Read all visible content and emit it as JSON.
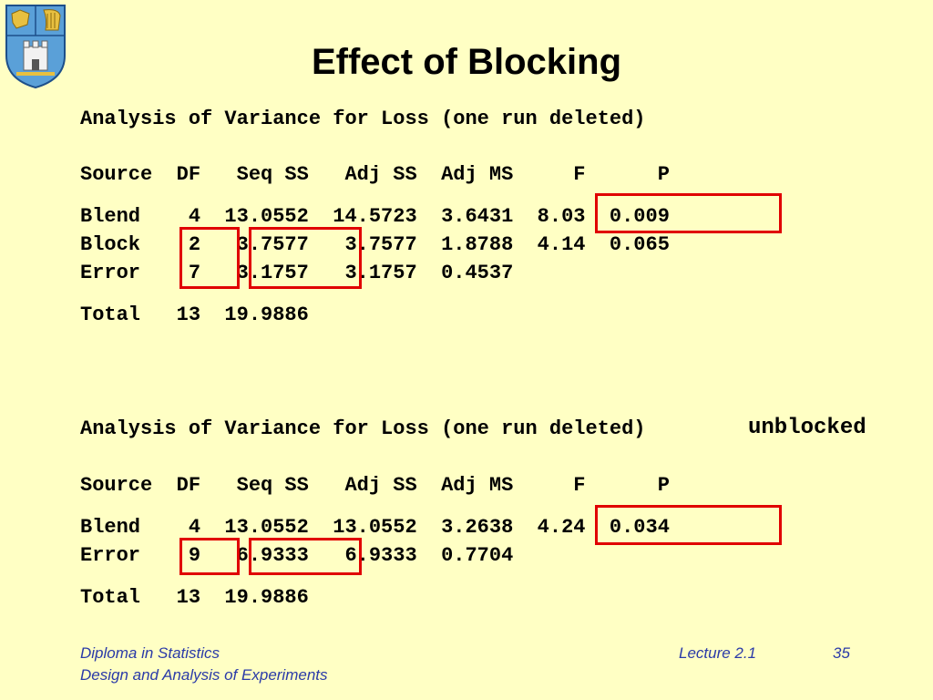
{
  "slide": {
    "title": "Effect of Blocking",
    "logo": "tcd-crest-icon"
  },
  "table1": {
    "heading": "Analysis of Variance for Loss (one run deleted)",
    "header": "Source  DF   Seq SS   Adj SS  Adj MS     F      P",
    "rows": [
      "Blend    4  13.0552  14.5723  3.6431  8.03  0.009",
      "Block    2   3.7577   3.7577  1.8788  4.14  0.065",
      "Error    7   3.1757   3.1757  0.4537"
    ],
    "total": "Total   13  19.9886"
  },
  "table2": {
    "heading": "Analysis of Variance for Loss (one run deleted)",
    "note": "unblocked",
    "header": "Source  DF   Seq SS   Adj SS  Adj MS     F      P",
    "rows": [
      "Blend    4  13.0552  13.0552  3.2638  4.24  0.034",
      "Error    9   6.9333   6.9333  0.7704"
    ],
    "total": "Total   13  19.9886"
  },
  "footer": {
    "course": "Diploma in Statistics",
    "module": "Design and Analysis of Experiments",
    "lecture": "Lecture 2.1",
    "page": "35"
  },
  "colors": {
    "background": "#ffffc4",
    "highlight": "#e00000",
    "footer_text": "#2a3aa8"
  }
}
